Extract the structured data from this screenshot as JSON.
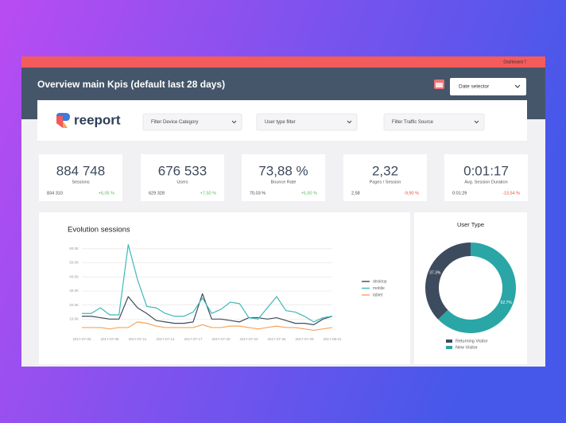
{
  "topbar": {
    "label": "Dashboard 7"
  },
  "header": {
    "title": "Overview main Kpis (default last 28 days)",
    "date_selector": "Date selector"
  },
  "brand": "reeport",
  "filters": [
    "Filter Device Category",
    "User type filter",
    "Filter Traffic Source"
  ],
  "kpis": [
    {
      "value": "884 748",
      "label": "Sessions",
      "previous": "834 310",
      "change": "+6,05 %",
      "change_color": "#5cb85c"
    },
    {
      "value": "676 533",
      "label": "Users",
      "previous": "629 328",
      "change": "+7,50 %",
      "change_color": "#5cb85c"
    },
    {
      "value": "73,88 %",
      "label": "Bounce Rate",
      "previous": "70,03 %",
      "change": "+5,50 %",
      "change_color": "#5cb85c"
    },
    {
      "value": "2,32",
      "label": "Pages / Session",
      "previous": "2,58",
      "change": "-9,90 %",
      "change_color": "#e74c3c"
    },
    {
      "value": "0:01:17",
      "label": "Avg. Session Duration",
      "previous": "0:01:29",
      "change": "-13,54 %",
      "change_color": "#e74c3c"
    }
  ],
  "chart_data": [
    {
      "type": "line",
      "title": "Evolution sessions",
      "categories": [
        "2017-07-05",
        null,
        null,
        "2017-07-08",
        null,
        null,
        "2017-07-11",
        null,
        null,
        "2017-07-14",
        null,
        null,
        "2017-07-17",
        null,
        null,
        "2017-07-20",
        null,
        null,
        "2017-07-23",
        null,
        null,
        "2017-07-26",
        null,
        null,
        "2017-07-29",
        null,
        null,
        "2017-08-01"
      ],
      "series": [
        {
          "name": "desktop",
          "color": "#3d4b5e",
          "values": [
            12000,
            12000,
            11000,
            10000,
            10000,
            26000,
            18000,
            14000,
            9000,
            8000,
            7000,
            7000,
            8000,
            28000,
            10000,
            10000,
            9000,
            8000,
            11000,
            11000,
            10000,
            11000,
            9000,
            7000,
            7000,
            6000,
            10000,
            12000
          ]
        },
        {
          "name": "mobile",
          "color": "#3fb8b8",
          "values": [
            14000,
            14000,
            18000,
            13000,
            13000,
            63000,
            38000,
            19000,
            18000,
            14000,
            12000,
            12000,
            15000,
            25000,
            14000,
            17000,
            22000,
            21000,
            11000,
            10000,
            18000,
            26000,
            16000,
            15000,
            12000,
            8000,
            11000,
            12000
          ]
        },
        {
          "name": "tablet",
          "color": "#f7a35c",
          "values": [
            4000,
            4000,
            4000,
            3000,
            4000,
            4000,
            8000,
            7000,
            5000,
            4000,
            4000,
            4000,
            4000,
            6000,
            4000,
            4000,
            5000,
            5000,
            4000,
            3000,
            4000,
            5000,
            4000,
            4000,
            3000,
            2000,
            3000,
            4000
          ]
        }
      ],
      "ylim": [
        0,
        65000
      ],
      "yticks": [
        {
          "value": 10000,
          "label": "10.0K"
        },
        {
          "value": 20000,
          "label": "20.0K"
        },
        {
          "value": 30000,
          "label": "30.0K"
        },
        {
          "value": 40000,
          "label": "40.0K"
        },
        {
          "value": 50000,
          "label": "50.0K"
        },
        {
          "value": 60000,
          "label": "60.0K"
        }
      ],
      "grid": true,
      "legend": "right"
    },
    {
      "type": "pie",
      "title": "User Type",
      "categories": [
        "Returning Visitor",
        "New Visitor"
      ],
      "values": [
        37.3,
        62.7
      ],
      "value_labels": [
        "37.3%",
        "62.7%"
      ],
      "colors": [
        "#3d4b5e",
        "#2aa6a6"
      ],
      "donut": true,
      "legend": "bottom"
    }
  ]
}
